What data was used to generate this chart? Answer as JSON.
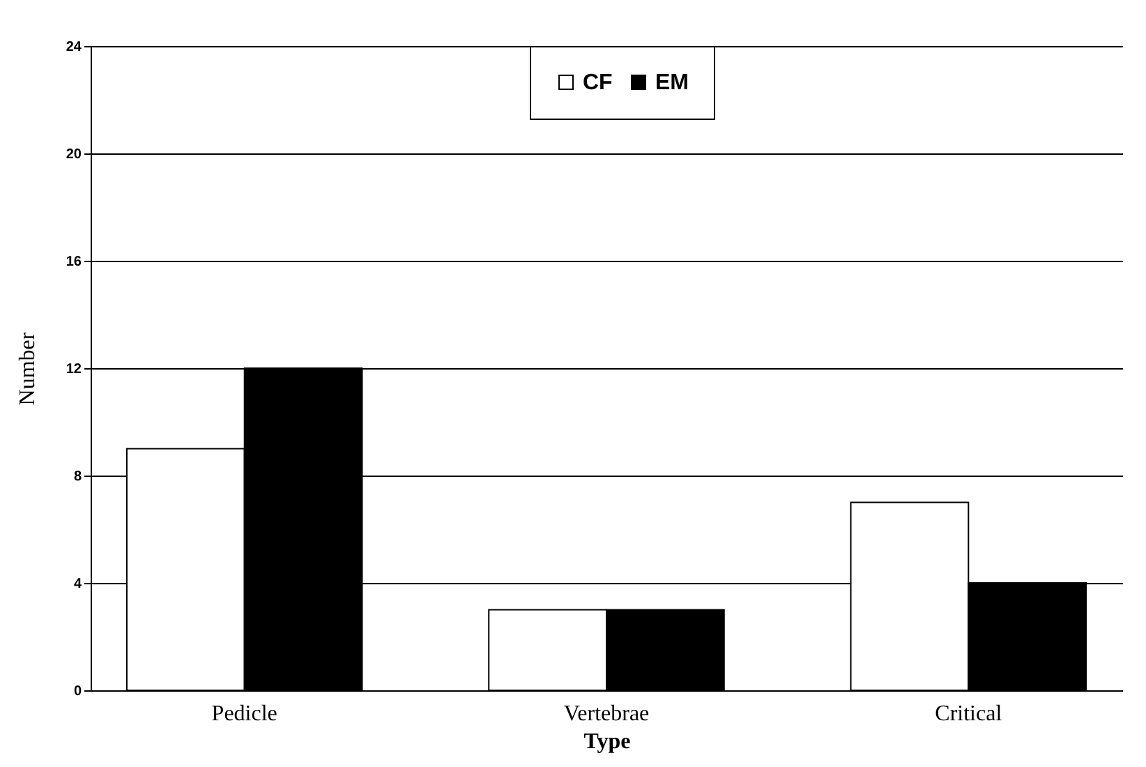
{
  "chart_data": {
    "type": "bar",
    "xlabel": "Type",
    "ylabel": "Number",
    "categories": [
      "Pedicle",
      "Vertebrae",
      "Critical"
    ],
    "series": [
      {
        "name": "CF",
        "color": "#ffffff",
        "values": [
          9,
          3,
          7
        ]
      },
      {
        "name": "EM",
        "color": "#000000",
        "values": [
          12,
          3,
          4
        ]
      }
    ],
    "ylim": [
      0,
      24
    ],
    "yticks": [
      0,
      4,
      8,
      12,
      16,
      20,
      24
    ],
    "grid": "y",
    "legend": "top"
  }
}
